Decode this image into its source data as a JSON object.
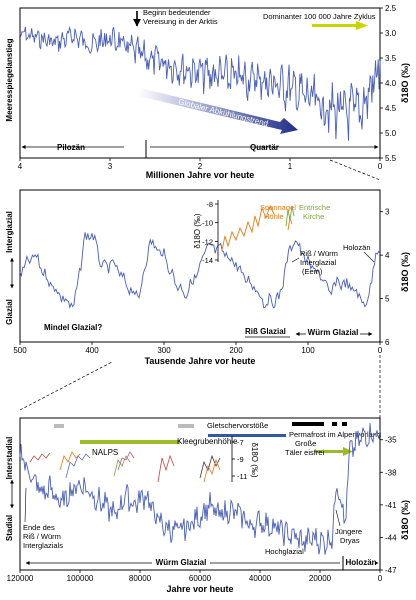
{
  "panel1": {
    "xlabel": "Millionen Jahre vor heute",
    "ylabel": "δ18O (‰)",
    "side_label": "Meeresspiegelanstieg",
    "x_ticks": [
      "4",
      "3",
      "2",
      "1",
      "0"
    ],
    "y_ticks": [
      "2.5",
      "3.0",
      "3.5",
      "4.0",
      "4.5",
      "5.0",
      "5.5"
    ],
    "ann_vereisung_1": "Beginn bedeutender",
    "ann_vereisung_2": "Vereisung in der Arktis",
    "ann_zyklus": "Dominanter 100 000 Jahre Zyklus",
    "ann_trend": "Globaler Abkühlungstrend",
    "epoch_pliozaen": "Pilozän",
    "epoch_quartaer": "Quartär",
    "colors": {
      "line": "#4a5fb5",
      "zyklus_bar": "#c8d400"
    }
  },
  "panel2": {
    "xlabel": "Tausende Jahre vor heute",
    "ylabel": "δ18O (‰)",
    "side_top": "Interglazial",
    "side_bottom": "Glazial",
    "x_ticks": [
      "500",
      "400",
      "300",
      "200",
      "100",
      "0"
    ],
    "y_ticks": [
      "3",
      "4",
      "5",
      "6"
    ],
    "inset_ylabel": "δ18O (‰)",
    "inset_ticks": [
      "-8",
      "-10",
      "-12",
      "-14"
    ],
    "ann_spannagel_1": "Spannagel",
    "ann_spannagel_2": "Höhle",
    "ann_entrische_1": "Entrische",
    "ann_entrische_2": "Kirche",
    "ann_riss_1": "Riß / Würm",
    "ann_riss_2": "Interglazial",
    "ann_riss_3": "(Eem)",
    "ann_holozaen": "Holozän",
    "ann_mindel": "Mindel Glazial?",
    "ann_riss_glazial": "Riß Glazial",
    "ann_wuerm_glazial": "Würm Glazial",
    "colors": {
      "line": "#4a5fb5",
      "spannagel": "#e07b1a",
      "entrische": "#7aa83a"
    }
  },
  "panel3": {
    "xlabel": "Jahre vor heute",
    "ylabel": "δ18O (‰)",
    "side_top": "Interstadial",
    "side_bottom": "Stadial",
    "x_ticks": [
      "120000",
      "100000",
      "80000",
      "60000",
      "40000",
      "20000",
      "0"
    ],
    "y_ticks": [
      "-35",
      "-38",
      "-41",
      "-44",
      "-47"
    ],
    "inset_ylabel": "δ18O (‰)",
    "inset_ticks": [
      "-7",
      "-9",
      "-11"
    ],
    "ann_gletscher": "Gletschervorstöße",
    "ann_permafrost": "Permafrost im Alpenvorland",
    "ann_taeler_1": "Große",
    "ann_taeler_2": "Täler eisfrei",
    "ann_nalps": "NALPS",
    "ann_klee": "Kleegrubenhöhle",
    "ann_ende_1": "Ende des",
    "ann_ende_2": "Riß / Würm",
    "ann_ende_3": "Interglazials",
    "ann_juengere_1": "Jüngere",
    "ann_juengere_2": "Dryas",
    "ann_wuerm": "Würm Glazial",
    "ann_hochglazial": "Hochglazial",
    "ann_holozaen": "Holozän",
    "colors": {
      "line": "#4a5fb5",
      "green_bar": "#9cbd2a",
      "gray_bar": "#bbbbbb",
      "black_bar": "#000000",
      "blue_bar": "#3355aa"
    }
  },
  "chart_data": [
    {
      "type": "line",
      "xlabel": "Millionen Jahre vor heute",
      "ylabel": "δ18O (‰)",
      "xlim": [
        4,
        0
      ],
      "ylim": [
        5.5,
        2.5
      ],
      "y_inverted": true,
      "x": [
        4.0,
        3.8,
        3.6,
        3.4,
        3.2,
        3.0,
        2.8,
        2.6,
        2.4,
        2.2,
        2.0,
        1.8,
        1.6,
        1.4,
        1.2,
        1.0,
        0.8,
        0.6,
        0.4,
        0.2,
        0.0
      ],
      "values": [
        3.0,
        3.1,
        3.2,
        3.05,
        3.25,
        3.1,
        3.3,
        3.5,
        3.6,
        3.7,
        3.8,
        3.85,
        3.9,
        3.9,
        4.0,
        4.1,
        4.3,
        4.5,
        4.6,
        4.5,
        3.7
      ]
    },
    {
      "type": "line",
      "xlabel": "Tausende Jahre vor heute",
      "ylabel": "δ18O (‰)",
      "xlim": [
        500,
        0
      ],
      "ylim": [
        6,
        2.5
      ],
      "y_inverted": true,
      "x": [
        500,
        480,
        460,
        440,
        425,
        410,
        400,
        385,
        370,
        355,
        335,
        320,
        300,
        285,
        270,
        250,
        240,
        220,
        200,
        190,
        175,
        160,
        140,
        130,
        120,
        110,
        100,
        85,
        70,
        60,
        45,
        30,
        20,
        11,
        5,
        0
      ],
      "values": [
        4.4,
        4.0,
        4.6,
        5.0,
        5.2,
        3.6,
        3.5,
        4.3,
        4.2,
        4.6,
        5.0,
        3.7,
        4.0,
        4.6,
        4.9,
        4.3,
        3.8,
        3.9,
        4.2,
        4.5,
        4.7,
        5.1,
        5.0,
        4.2,
        3.6,
        3.9,
        4.2,
        4.4,
        4.9,
        4.6,
        4.7,
        4.9,
        5.2,
        4.5,
        3.9,
        3.8
      ]
    },
    {
      "type": "line",
      "xlabel": "Jahre vor heute",
      "ylabel": "δ18O (‰)",
      "xlim": [
        120000,
        0
      ],
      "ylim": [
        -47,
        -33
      ],
      "x": [
        120000,
        117000,
        115000,
        112000,
        110000,
        106000,
        104000,
        100000,
        96000,
        92000,
        88000,
        85000,
        82000,
        78000,
        75000,
        72000,
        68000,
        64000,
        60000,
        57000,
        54000,
        50000,
        46000,
        43000,
        40000,
        36000,
        32000,
        28000,
        25000,
        22000,
        19000,
        16000,
        14500,
        13000,
        12000,
        11500,
        10000,
        5000,
        0
      ],
      "values": [
        -36,
        -38,
        -39,
        -40,
        -39.5,
        -41,
        -40,
        -39,
        -40,
        -41,
        -42,
        -40,
        -41,
        -40,
        -42,
        -43,
        -43.5,
        -43,
        -42,
        -41,
        -42,
        -41.5,
        -42,
        -43,
        -42.5,
        -43,
        -43.5,
        -44,
        -44.5,
        -44,
        -44.5,
        -44,
        -39,
        -40,
        -43,
        -42,
        -36,
        -34.5,
        -34.5
      ]
    }
  ]
}
